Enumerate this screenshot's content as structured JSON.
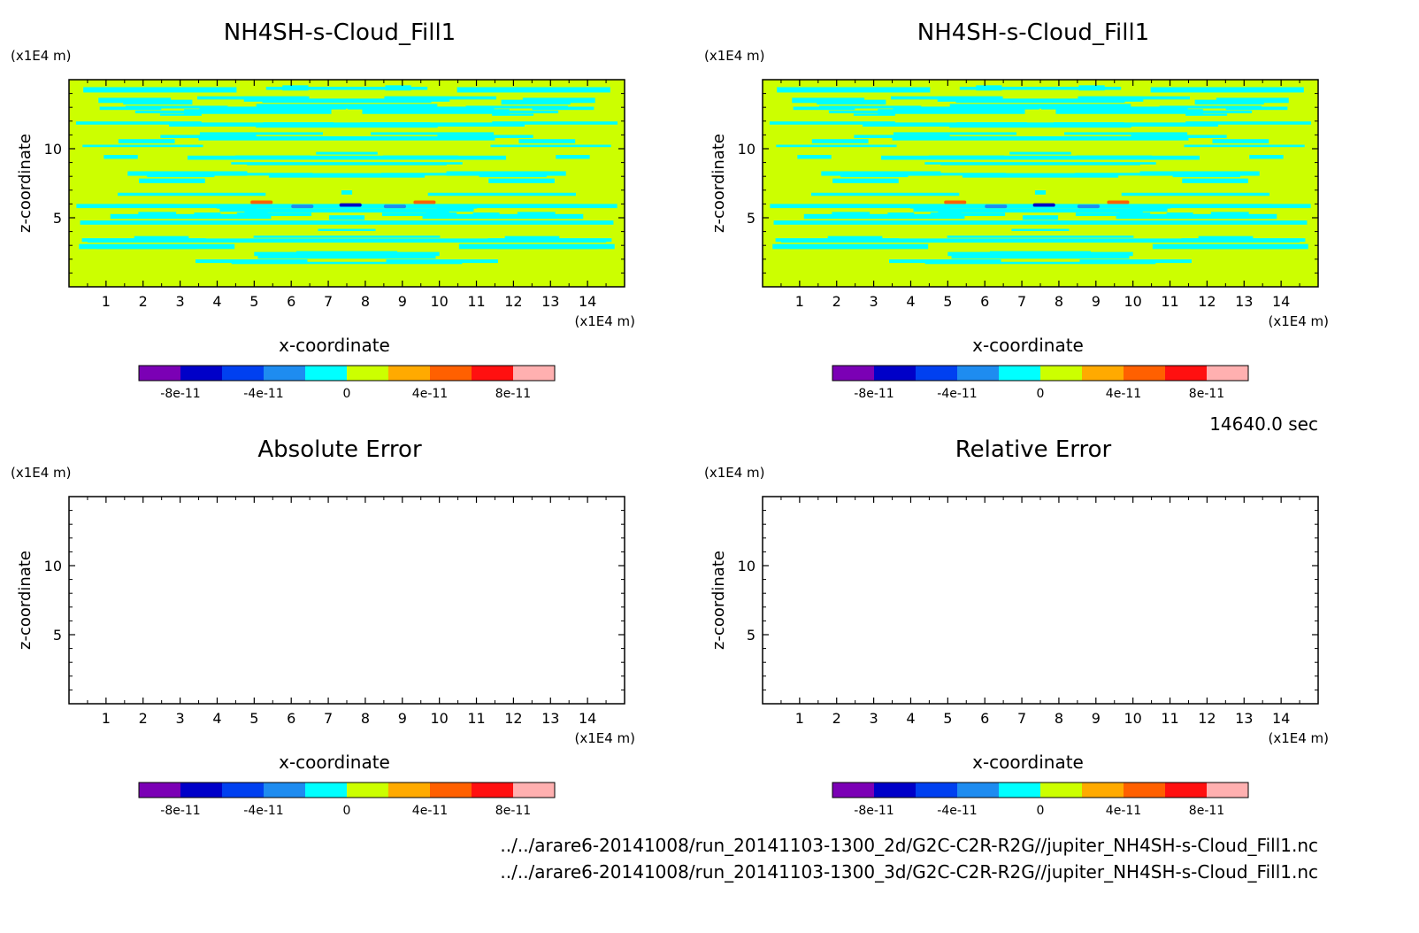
{
  "panels": [
    {
      "id": "p1",
      "title": "NH4SH-s-Cloud_Fill1",
      "z_unit": "(x1E4 m)",
      "x_unit": "(x1E4 m)",
      "xlabel": "x-coordinate",
      "ylabel": "z-coordinate",
      "filled": true
    },
    {
      "id": "p2",
      "title": "NH4SH-s-Cloud_Fill1",
      "z_unit": "(x1E4 m)",
      "x_unit": "(x1E4 m)",
      "xlabel": "x-coordinate",
      "ylabel": "z-coordinate",
      "filled": true
    },
    {
      "id": "p3",
      "title": "Absolute Error",
      "z_unit": "(x1E4 m)",
      "x_unit": "(x1E4 m)",
      "xlabel": "x-coordinate",
      "ylabel": "z-coordinate",
      "filled": false
    },
    {
      "id": "p4",
      "title": "Relative Error",
      "z_unit": "(x1E4 m)",
      "x_unit": "(x1E4 m)",
      "xlabel": "x-coordinate",
      "ylabel": "z-coordinate",
      "filled": false
    }
  ],
  "time_label": "14640.0 sec",
  "footer_paths": [
    "../../arare6-20141008/run_20141103-1300_2d/G2C-C2R-R2G//jupiter_NH4SH-s-Cloud_Fill1.nc",
    "../../arare6-20141008/run_20141103-1300_3d/G2C-C2R-R2G//jupiter_NH4SH-s-Cloud_Fill1.nc"
  ],
  "colorbar": {
    "colors": [
      "#7b00b5",
      "#0000c8",
      "#0040f0",
      "#1e8cf0",
      "#00ffff",
      "#ccff00",
      "#ffaa00",
      "#ff6000",
      "#ff1010",
      "#ffb0b0"
    ],
    "tick_labels": [
      "-8e-11",
      "-4e-11",
      "0",
      "4e-11",
      "8e-11"
    ]
  },
  "chart_data": {
    "type": "heatmap",
    "x_range": [
      0,
      15
    ],
    "z_range": [
      0,
      15
    ],
    "x_ticks": [
      "1",
      "2",
      "3",
      "4",
      "5",
      "6",
      "7",
      "8",
      "9",
      "10",
      "11",
      "12",
      "13",
      "14"
    ],
    "z_ticks": [
      "5",
      "10"
    ],
    "z_tick_values": [
      5,
      10
    ],
    "background_color": "#ccff00",
    "pattern_color": "#00ffff",
    "value_levels": [
      -1e-10,
      -8e-11,
      -6e-11,
      -4e-11,
      -2e-11,
      0,
      2e-11,
      4e-11,
      6e-11,
      8e-11,
      1e-10
    ],
    "anomalies": [
      {
        "x": 5.2,
        "z": 6.0,
        "color": "#ff6000"
      },
      {
        "x": 7.6,
        "z": 5.8,
        "color": "#0000c8"
      },
      {
        "x": 9.6,
        "z": 6.0,
        "color": "#ff6000"
      },
      {
        "x": 6.3,
        "z": 5.7,
        "color": "#1e8cf0"
      },
      {
        "x": 8.8,
        "z": 5.7,
        "color": "#1e8cf0"
      }
    ]
  }
}
